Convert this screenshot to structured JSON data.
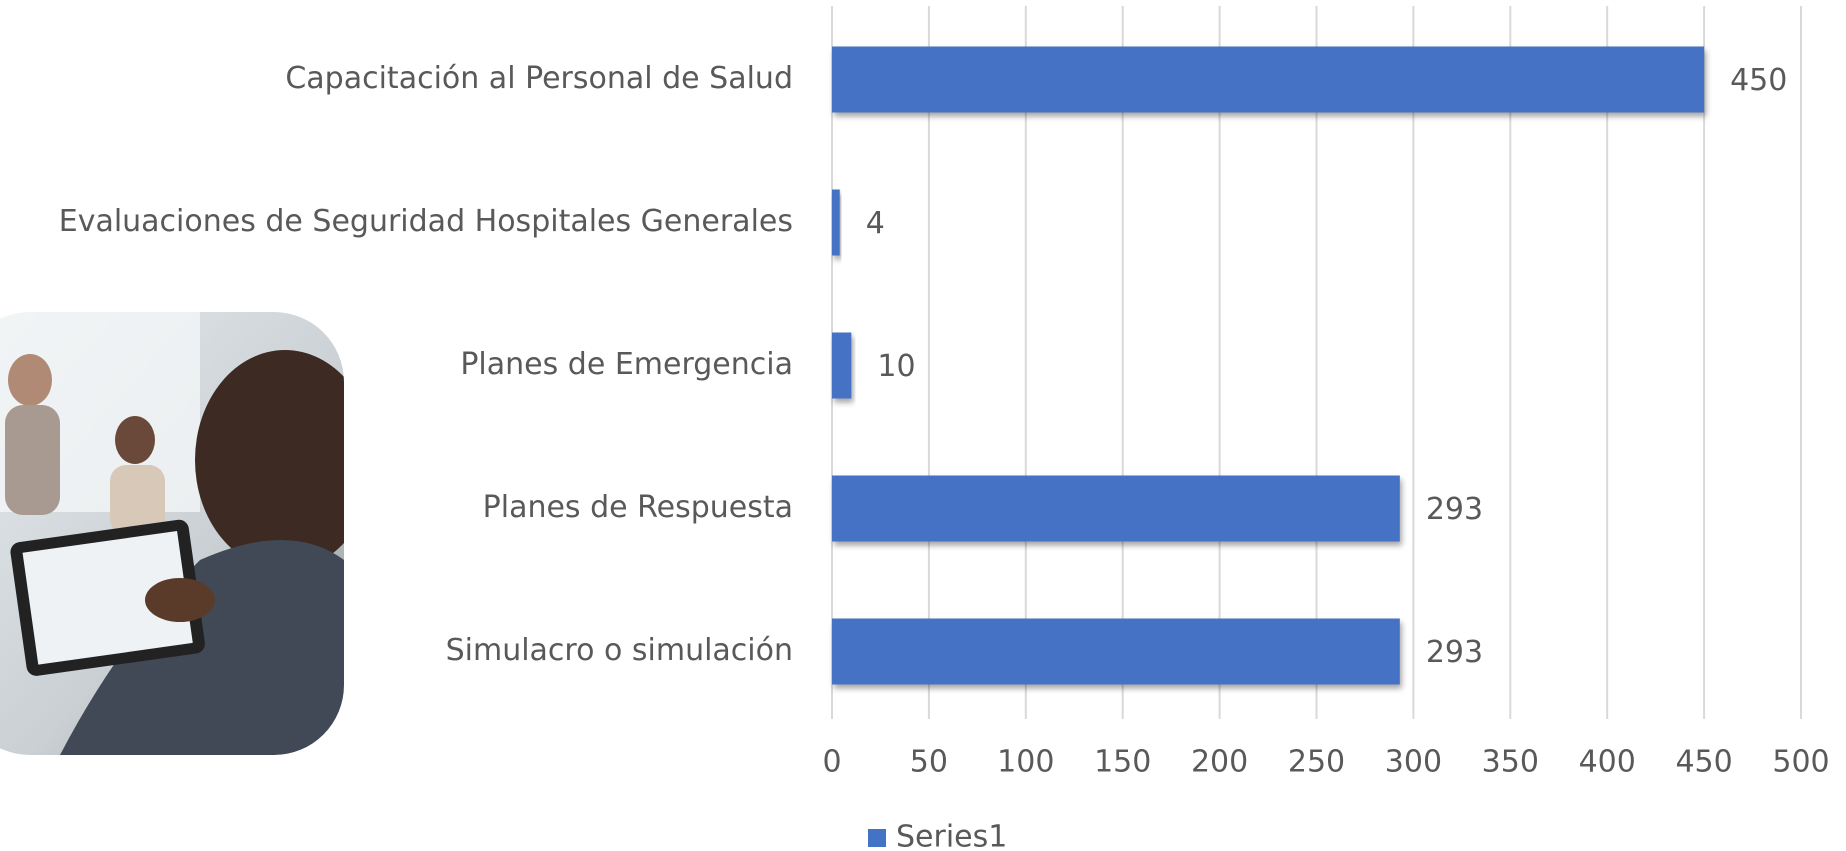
{
  "chart_data": {
    "type": "bar",
    "orientation": "horizontal",
    "categories": [
      "Capacitación al Personal de Salud",
      "Evaluaciones de Seguridad Hospitales Generales",
      "Planes de Emergencia",
      "Planes de Respuesta",
      "Simulacro o simulación"
    ],
    "series": [
      {
        "name": "Series1",
        "color": "#4472c4",
        "values": [
          450,
          4,
          10,
          293,
          293
        ]
      }
    ],
    "xlim": [
      0,
      500
    ],
    "xticks": [
      0,
      50,
      100,
      150,
      200,
      250,
      300,
      350,
      400,
      450,
      500
    ],
    "grid": true,
    "legend": "bottom"
  }
}
